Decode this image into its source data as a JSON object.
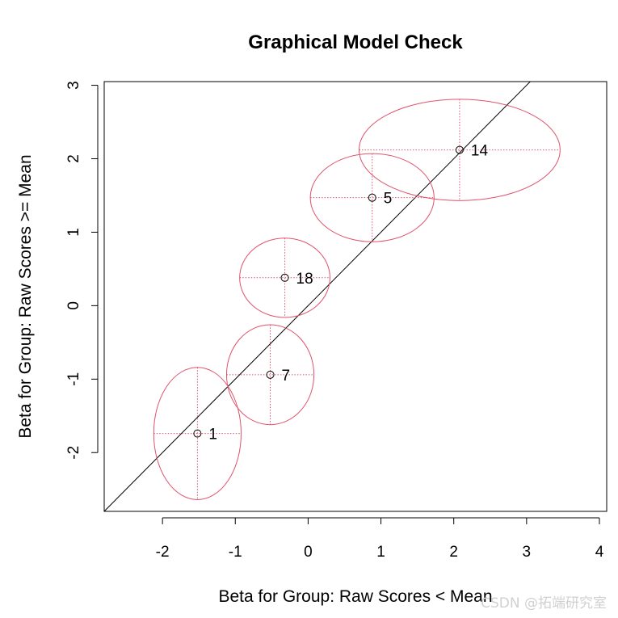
{
  "chart_data": {
    "type": "scatter",
    "title": "Graphical Model Check",
    "xlabel": "Beta for Group: Raw Scores < Mean",
    "ylabel": "Beta for Group: Raw Scores >= Mean",
    "xlim": [
      -2.8,
      4.1
    ],
    "ylim": [
      -2.8,
      3.05
    ],
    "xticks": [
      -2,
      -1,
      0,
      1,
      2,
      3,
      4
    ],
    "yticks": [
      -2,
      -1,
      0,
      1,
      2,
      3
    ],
    "grid": false,
    "identity_line": true,
    "points": [
      {
        "label": "1",
        "x": -1.52,
        "y": -1.74,
        "x_half_width": 0.6,
        "y_half_height": 0.9
      },
      {
        "label": "7",
        "x": -0.52,
        "y": -0.94,
        "x_half_width": 0.6,
        "y_half_height": 0.68
      },
      {
        "label": "18",
        "x": -0.32,
        "y": 0.38,
        "x_half_width": 0.62,
        "y_half_height": 0.54
      },
      {
        "label": "5",
        "x": 0.88,
        "y": 1.47,
        "x_half_width": 0.85,
        "y_half_height": 0.6
      },
      {
        "label": "14",
        "x": 2.08,
        "y": 2.12,
        "x_half_width": 1.38,
        "y_half_height": 0.69
      }
    ],
    "colors": {
      "ellipse": "#df536b",
      "line": "#000000",
      "point": "#000000"
    }
  },
  "watermark": "CSDN @拓端研究室"
}
